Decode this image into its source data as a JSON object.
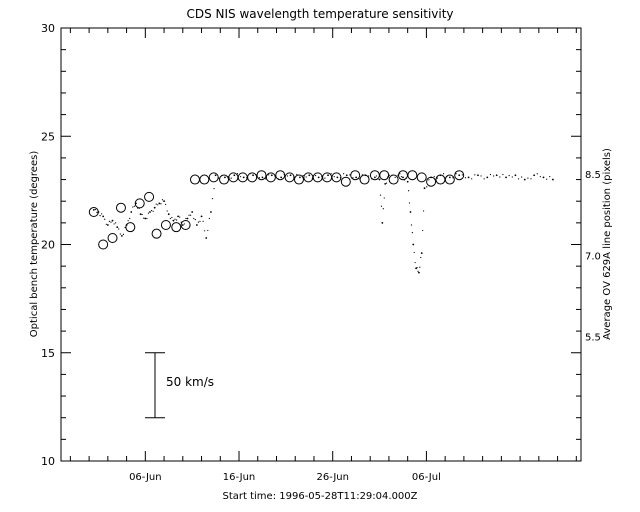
{
  "chart_data": {
    "type": "scatter",
    "title": "CDS NIS wavelength temperature sensitivity",
    "xlabel": "Start time: 1996-05-28T11:29:04.000Z",
    "ylabel": "Optical bench temperature (degrees)",
    "y2label": "Average OV 629A line position (pixels)",
    "x_unit": "days since start (1996-05-28 11:29)",
    "xlim": [
      0,
      55.5
    ],
    "ylim": [
      10,
      30
    ],
    "y2lim": [
      3.2,
      11.2
    ],
    "yticks": [
      10,
      15,
      20,
      25,
      30
    ],
    "y2ticks": [
      5.5,
      7.0,
      8.5
    ],
    "y2ticklabels": [
      "5.5",
      "7.0",
      "8.5"
    ],
    "xticks": [
      {
        "x": 9.0,
        "label": "06-Jun"
      },
      {
        "x": 19.0,
        "label": "16-Jun"
      },
      {
        "x": 29.0,
        "label": "26-Jun"
      },
      {
        "x": 39.0,
        "label": "06-Jul"
      }
    ],
    "scale_bar": {
      "label": "50 km/s",
      "y_from": 12.0,
      "y_to": 15.0,
      "x": 9.0
    },
    "series": [
      {
        "name": "Optical bench temperature",
        "style": "dots",
        "points": [
          [
            3.5,
            21.6
          ],
          [
            4.0,
            21.5
          ],
          [
            4.5,
            21.3
          ],
          [
            5.0,
            20.9
          ],
          [
            5.5,
            21.1
          ],
          [
            6.0,
            20.8
          ],
          [
            6.5,
            20.4
          ],
          [
            7.0,
            20.9
          ],
          [
            7.5,
            21.5
          ],
          [
            8.0,
            21.9
          ],
          [
            8.5,
            21.4
          ],
          [
            9.0,
            21.2
          ],
          [
            9.5,
            21.5
          ],
          [
            10.0,
            21.7
          ],
          [
            10.5,
            21.9
          ],
          [
            11.0,
            22.0
          ],
          [
            11.5,
            21.4
          ],
          [
            12.0,
            21.1
          ],
          [
            12.5,
            21.3
          ],
          [
            13.0,
            20.9
          ],
          [
            13.5,
            21.2
          ],
          [
            14.0,
            21.5
          ],
          [
            14.5,
            20.9
          ],
          [
            15.0,
            21.3
          ],
          [
            15.5,
            20.3
          ],
          [
            16.0,
            21.5
          ],
          [
            16.5,
            23.2
          ],
          [
            17.5,
            23.1
          ],
          [
            18.5,
            23.2
          ],
          [
            19.5,
            23.1
          ],
          [
            20.5,
            23.2
          ],
          [
            21.5,
            23.1
          ],
          [
            22.5,
            23.2
          ],
          [
            23.5,
            23.1
          ],
          [
            24.5,
            23.2
          ],
          [
            25.5,
            23.1
          ],
          [
            26.5,
            23.2
          ],
          [
            27.5,
            23.1
          ],
          [
            28.5,
            23.2
          ],
          [
            29.5,
            23.1
          ],
          [
            30.5,
            23.2
          ],
          [
            31.5,
            23.1
          ],
          [
            32.5,
            23.2
          ],
          [
            33.5,
            23.1
          ],
          [
            34.0,
            23.0
          ],
          [
            34.3,
            21.0
          ],
          [
            34.6,
            22.8
          ],
          [
            35.0,
            23.2
          ],
          [
            36.0,
            23.2
          ],
          [
            36.5,
            23.1
          ],
          [
            37.0,
            22.9
          ],
          [
            37.3,
            21.5
          ],
          [
            37.6,
            20.0
          ],
          [
            37.9,
            18.9
          ],
          [
            38.2,
            18.7
          ],
          [
            38.5,
            19.6
          ],
          [
            38.8,
            22.6
          ],
          [
            39.5,
            23.1
          ],
          [
            40.5,
            23.2
          ],
          [
            41.5,
            23.1
          ],
          [
            42.5,
            23.2
          ],
          [
            43.5,
            23.1
          ],
          [
            44.5,
            23.2
          ],
          [
            45.5,
            23.1
          ],
          [
            46.5,
            23.2
          ],
          [
            47.5,
            23.1
          ],
          [
            48.5,
            23.2
          ],
          [
            49.5,
            23.0
          ],
          [
            50.5,
            23.2
          ],
          [
            51.5,
            23.1
          ],
          [
            52.5,
            23.0
          ]
        ]
      },
      {
        "name": "Average OV 629A line position",
        "style": "circles",
        "points": [
          [
            3.5,
            21.5
          ],
          [
            4.5,
            20.0
          ],
          [
            5.5,
            20.3
          ],
          [
            6.4,
            21.7
          ],
          [
            7.4,
            20.8
          ],
          [
            8.4,
            21.9
          ],
          [
            9.4,
            22.2
          ],
          [
            10.2,
            20.5
          ],
          [
            11.2,
            20.9
          ],
          [
            12.3,
            20.8
          ],
          [
            13.3,
            20.9
          ],
          [
            14.3,
            23.0
          ],
          [
            15.3,
            23.0
          ],
          [
            16.3,
            23.1
          ],
          [
            17.4,
            23.0
          ],
          [
            18.4,
            23.1
          ],
          [
            19.4,
            23.1
          ],
          [
            20.4,
            23.1
          ],
          [
            21.4,
            23.2
          ],
          [
            22.4,
            23.1
          ],
          [
            23.4,
            23.2
          ],
          [
            24.4,
            23.1
          ],
          [
            25.4,
            23.0
          ],
          [
            26.4,
            23.1
          ],
          [
            27.4,
            23.1
          ],
          [
            28.4,
            23.1
          ],
          [
            29.4,
            23.1
          ],
          [
            30.4,
            22.9
          ],
          [
            31.4,
            23.2
          ],
          [
            32.4,
            23.0
          ],
          [
            33.5,
            23.2
          ],
          [
            34.5,
            23.2
          ],
          [
            35.5,
            23.0
          ],
          [
            36.5,
            23.2
          ],
          [
            37.5,
            23.2
          ],
          [
            38.5,
            23.1
          ],
          [
            39.5,
            22.9
          ],
          [
            40.5,
            23.0
          ],
          [
            41.5,
            23.0
          ],
          [
            42.5,
            23.2
          ]
        ]
      }
    ]
  }
}
